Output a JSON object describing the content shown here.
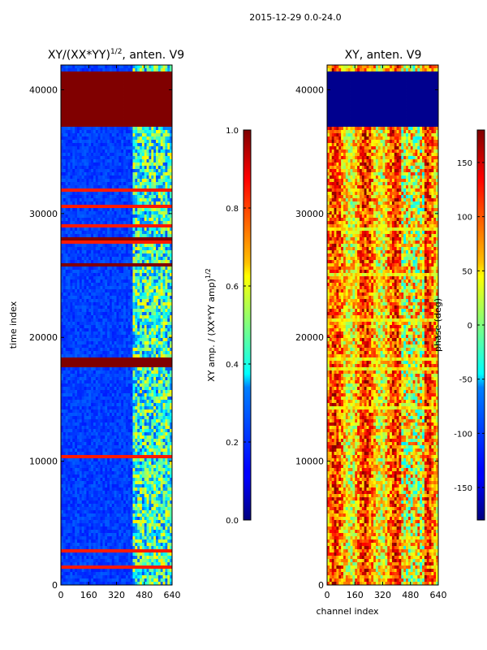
{
  "figure_title": "2015-12-29 0.0-24.0",
  "chart_data": [
    {
      "type": "heatmap",
      "title": "XY/(XX*YY)^1/2, anten. V9",
      "title_main": "XY/(XX*YY)",
      "title_exp": "1/2",
      "title_tail": ", anten. V9",
      "xlabel": "",
      "ylabel": "time index",
      "xlim": [
        0,
        640
      ],
      "ylim": [
        0,
        42000
      ],
      "xticks": [
        0,
        160,
        320,
        480,
        640
      ],
      "yticks": [
        0,
        10000,
        20000,
        30000,
        40000
      ],
      "colormap": "jet",
      "colorbar": {
        "label_main": "XY amp. / (XX*YY amp)",
        "label_exp": "1/2",
        "range": [
          0.0,
          1.0
        ],
        "ticks": [
          "0.0",
          "0.2",
          "0.4",
          "0.6",
          "0.8",
          "1.0"
        ],
        "tick_values": [
          0.0,
          0.2,
          0.4,
          0.6,
          0.8,
          1.0
        ]
      },
      "saturated_rows": [
        {
          "y0": 37000,
          "y1": 41600,
          "value": 1.0
        },
        {
          "y0": 27800,
          "y1": 28200,
          "value": 1.0
        },
        {
          "y0": 25600,
          "y1": 26000,
          "value": 1.0
        },
        {
          "y0": 17600,
          "y1": 18300,
          "value": 1.0
        }
      ],
      "high_band": {
        "x0": 420,
        "x1": 640,
        "value": 0.5
      },
      "background_value": 0.15
    },
    {
      "type": "heatmap",
      "title": "XY, anten. V9",
      "xlabel": "channel index",
      "ylabel": "",
      "xlim": [
        0,
        640
      ],
      "ylim": [
        0,
        42000
      ],
      "xticks": [
        0,
        160,
        320,
        480,
        640
      ],
      "yticks": [
        0,
        10000,
        20000,
        30000,
        40000
      ],
      "colormap": "jet",
      "colorbar": {
        "label": "phase (deg)",
        "range": [
          -180,
          180
        ],
        "ticks": [
          "-150",
          "-100",
          "-50",
          "0",
          "50",
          "100",
          "150"
        ],
        "tick_values": [
          -150,
          -100,
          -50,
          0,
          50,
          100,
          150
        ]
      },
      "uniform_rows": [
        {
          "y0": 37000,
          "y1": 41600,
          "value": -175
        }
      ]
    }
  ],
  "colors": {
    "jet_low": "#00007f",
    "jet_high": "#7f0000"
  }
}
